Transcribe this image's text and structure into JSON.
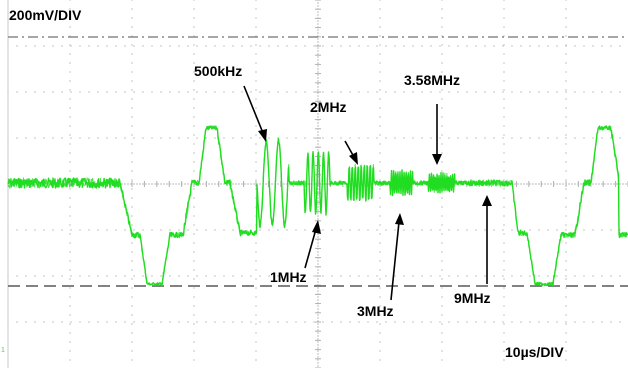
{
  "scope": {
    "vertical_scale": "200mV/DIV",
    "horizontal_scale": "10µs/DIV",
    "ground_marker": "1",
    "trace_color": "#22dd22",
    "grid_color": "#b0b0b0",
    "reference_line_color": "#808080"
  },
  "annotations": {
    "f500k": "500kHz",
    "f1m": "1MHz",
    "f2m": "2MHz",
    "f3m": "3MHz",
    "f358m": "3.58MHz",
    "f9m": "9MHz"
  }
}
